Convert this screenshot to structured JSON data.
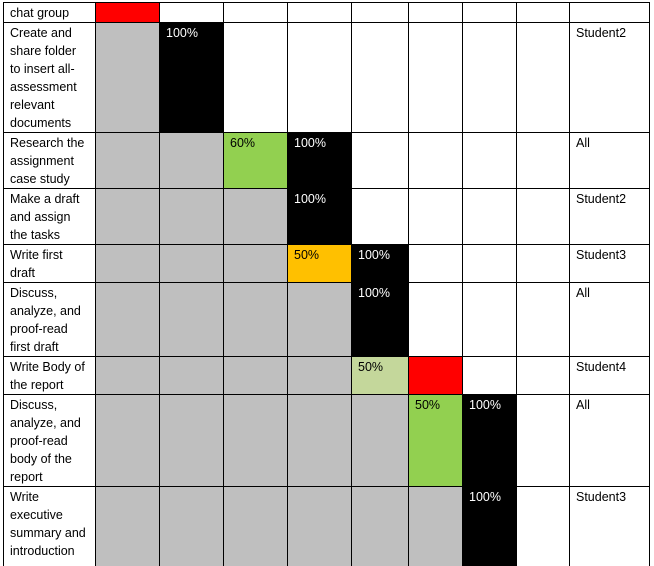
{
  "colors": {
    "gray": "#bfbfbf",
    "black": "#000000",
    "red": "#ff0000",
    "green": "#92d050",
    "lightgreen": "#c4d79b",
    "amber": "#ffc000"
  },
  "rows": [
    {
      "task": "chat group",
      "cells": [
        {
          "fill": "red",
          "text": ""
        },
        {
          "fill": "empty",
          "text": ""
        },
        {
          "fill": "empty",
          "text": ""
        },
        {
          "fill": "empty",
          "text": ""
        },
        {
          "fill": "empty",
          "text": ""
        },
        {
          "fill": "empty",
          "text": ""
        },
        {
          "fill": "empty",
          "text": ""
        },
        {
          "fill": "empty",
          "text": ""
        }
      ],
      "owner": ""
    },
    {
      "task": "Create and share folder to insert all-assessment relevant documents",
      "cells": [
        {
          "fill": "gray",
          "text": ""
        },
        {
          "fill": "black",
          "text": "100%"
        },
        {
          "fill": "empty",
          "text": ""
        },
        {
          "fill": "empty",
          "text": ""
        },
        {
          "fill": "empty",
          "text": ""
        },
        {
          "fill": "empty",
          "text": ""
        },
        {
          "fill": "empty",
          "text": ""
        },
        {
          "fill": "empty",
          "text": ""
        }
      ],
      "owner": "Student2"
    },
    {
      "task": "Research the assignment case study",
      "cells": [
        {
          "fill": "gray",
          "text": ""
        },
        {
          "fill": "gray",
          "text": ""
        },
        {
          "fill": "green",
          "text": "60%"
        },
        {
          "fill": "black",
          "text": "100%"
        },
        {
          "fill": "empty",
          "text": ""
        },
        {
          "fill": "empty",
          "text": ""
        },
        {
          "fill": "empty",
          "text": ""
        },
        {
          "fill": "empty",
          "text": ""
        }
      ],
      "owner": "All"
    },
    {
      "task": "Make a draft and assign the tasks",
      "cells": [
        {
          "fill": "gray",
          "text": ""
        },
        {
          "fill": "gray",
          "text": ""
        },
        {
          "fill": "gray",
          "text": ""
        },
        {
          "fill": "black",
          "text": "100%"
        },
        {
          "fill": "empty",
          "text": ""
        },
        {
          "fill": "empty",
          "text": ""
        },
        {
          "fill": "empty",
          "text": ""
        },
        {
          "fill": "empty",
          "text": ""
        }
      ],
      "owner": "Student2"
    },
    {
      "task": "Write first draft",
      "cells": [
        {
          "fill": "gray",
          "text": ""
        },
        {
          "fill": "gray",
          "text": ""
        },
        {
          "fill": "gray",
          "text": ""
        },
        {
          "fill": "amber",
          "text": "50%"
        },
        {
          "fill": "black",
          "text": "100%"
        },
        {
          "fill": "empty",
          "text": ""
        },
        {
          "fill": "empty",
          "text": ""
        },
        {
          "fill": "empty",
          "text": ""
        }
      ],
      "owner": "Student3"
    },
    {
      "task": "Discuss, analyze, and proof-read first draft",
      "cells": [
        {
          "fill": "gray",
          "text": ""
        },
        {
          "fill": "gray",
          "text": ""
        },
        {
          "fill": "gray",
          "text": ""
        },
        {
          "fill": "gray",
          "text": ""
        },
        {
          "fill": "black",
          "text": "100%"
        },
        {
          "fill": "empty",
          "text": ""
        },
        {
          "fill": "empty",
          "text": ""
        },
        {
          "fill": "empty",
          "text": ""
        }
      ],
      "owner": "All"
    },
    {
      "task": "Write Body of the report",
      "cells": [
        {
          "fill": "gray",
          "text": ""
        },
        {
          "fill": "gray",
          "text": ""
        },
        {
          "fill": "gray",
          "text": ""
        },
        {
          "fill": "gray",
          "text": ""
        },
        {
          "fill": "lightgreen",
          "text": "50%"
        },
        {
          "fill": "red",
          "text": ""
        },
        {
          "fill": "empty",
          "text": ""
        },
        {
          "fill": "empty",
          "text": ""
        }
      ],
      "owner": "Student4"
    },
    {
      "task": "Discuss, analyze, and proof-read body of the report",
      "cells": [
        {
          "fill": "gray",
          "text": ""
        },
        {
          "fill": "gray",
          "text": ""
        },
        {
          "fill": "gray",
          "text": ""
        },
        {
          "fill": "gray",
          "text": ""
        },
        {
          "fill": "gray",
          "text": ""
        },
        {
          "fill": "green",
          "text": "50%"
        },
        {
          "fill": "black",
          "text": "100%"
        },
        {
          "fill": "empty",
          "text": ""
        }
      ],
      "owner": "All"
    },
    {
      "task": "Write executive summary and introduction",
      "cells": [
        {
          "fill": "gray",
          "text": ""
        },
        {
          "fill": "gray",
          "text": ""
        },
        {
          "fill": "gray",
          "text": ""
        },
        {
          "fill": "gray",
          "text": ""
        },
        {
          "fill": "gray",
          "text": ""
        },
        {
          "fill": "gray",
          "text": ""
        },
        {
          "fill": "black",
          "text": "100%"
        },
        {
          "fill": "empty",
          "text": ""
        }
      ],
      "owner": "Student3"
    },
    {
      "task": "",
      "cells": [
        {
          "fill": "empty",
          "text": ""
        },
        {
          "fill": "empty",
          "text": ""
        },
        {
          "fill": "empty",
          "text": ""
        },
        {
          "fill": "empty",
          "text": ""
        },
        {
          "fill": "empty",
          "text": ""
        },
        {
          "fill": "amber",
          "text": ""
        },
        {
          "fill": "empty",
          "text": ""
        },
        {
          "fill": "empty",
          "text": ""
        }
      ],
      "owner": ""
    }
  ]
}
